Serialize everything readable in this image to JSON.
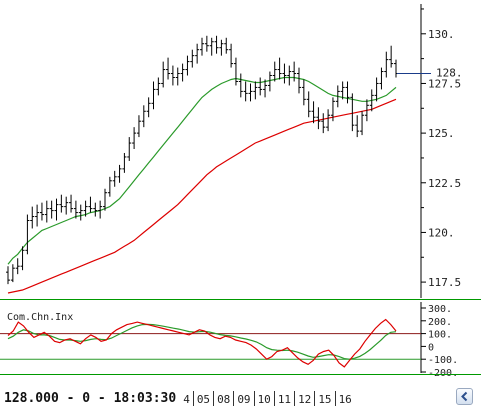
{
  "status": {
    "readout": "128.000 - 0 - 18:03:30",
    "date_ticks": [
      "4",
      "05",
      "08",
      "09",
      "10",
      "11",
      "12",
      "15",
      "16"
    ]
  },
  "colors": {
    "price": "#000000",
    "ma_fast": "#2a9a2a",
    "ma_slow": "#dd0000",
    "last_price_line": "#1a3c8a",
    "separator": "#009900",
    "overbought_level": "#8b1a1a",
    "oversold_level": "#2a9a2a",
    "indicator": "#dd0000",
    "signal": "#2a9a2a"
  },
  "chart_data": [
    {
      "type": "bar",
      "title": "",
      "xlabel": "",
      "ylabel": "",
      "ylim": [
        116.8,
        131.5
      ],
      "yticks": [
        117.5,
        120,
        122.5,
        125,
        127.5,
        130
      ],
      "y_tick_labels": [
        "117.5",
        "120.",
        "122.5",
        "125.",
        "127.5",
        "130."
      ],
      "last_price": 128,
      "last_price_label": "128.",
      "grid": false,
      "series": [
        {
          "kind": "ohlc",
          "values": [
            [
              118,
              118.3,
              117.4,
              117.6
            ],
            [
              117.6,
              118.4,
              117.5,
              118.2
            ],
            [
              118.2,
              118.7,
              117.9,
              118.3
            ],
            [
              118.3,
              119.3,
              118.1,
              119.1
            ],
            [
              119.1,
              120.9,
              118.9,
              120.6
            ],
            [
              120.6,
              121.3,
              120.2,
              120.8
            ],
            [
              120.8,
              121.4,
              120.3,
              121
            ],
            [
              121,
              121.5,
              120.6,
              120.9
            ],
            [
              120.9,
              121.6,
              120.5,
              121.2
            ],
            [
              121.2,
              121.6,
              120.7,
              121.1
            ],
            [
              121.1,
              121.7,
              120.6,
              121.4
            ],
            [
              121.4,
              121.9,
              121,
              121.3
            ],
            [
              121.3,
              121.8,
              120.9,
              121.5
            ],
            [
              121.5,
              121.9,
              121,
              121.2
            ],
            [
              121.2,
              121.6,
              120.7,
              121
            ],
            [
              121,
              121.4,
              120.6,
              121.1
            ],
            [
              121.1,
              121.6,
              120.8,
              121.3
            ],
            [
              121.3,
              121.8,
              121,
              121.2
            ],
            [
              121.2,
              121.5,
              120.8,
              121.1
            ],
            [
              121.1,
              121.6,
              120.7,
              121.3
            ],
            [
              121.3,
              122.2,
              121.1,
              122
            ],
            [
              122,
              122.8,
              121.8,
              122.6
            ],
            [
              122.6,
              123.1,
              122.3,
              122.8
            ],
            [
              122.8,
              123.4,
              122.5,
              123.2
            ],
            [
              123.2,
              124,
              123,
              123.8
            ],
            [
              123.8,
              124.8,
              123.6,
              124.5
            ],
            [
              124.5,
              125.3,
              124.2,
              125
            ],
            [
              125,
              125.9,
              124.8,
              125.6
            ],
            [
              125.6,
              126.4,
              125.3,
              126.1
            ],
            [
              126.1,
              126.8,
              125.8,
              126.5
            ],
            [
              126.5,
              127.6,
              126.2,
              127.2
            ],
            [
              127.2,
              127.8,
              126.9,
              127.5
            ],
            [
              127.5,
              128.6,
              127.3,
              128.2
            ],
            [
              128.2,
              128.8,
              127.7,
              128
            ],
            [
              128,
              128.4,
              127.4,
              127.8
            ],
            [
              127.8,
              128.3,
              127.4,
              128
            ],
            [
              128,
              128.5,
              127.6,
              128.2
            ],
            [
              128.2,
              128.9,
              127.9,
              128.6
            ],
            [
              128.6,
              129.2,
              128.3,
              128.9
            ],
            [
              128.9,
              129.5,
              128.5,
              129.2
            ],
            [
              129.2,
              129.8,
              128.9,
              129.5
            ],
            [
              129.5,
              129.9,
              129.1,
              129.4
            ],
            [
              129.4,
              129.8,
              128.9,
              129.6
            ],
            [
              129.6,
              129.9,
              129,
              129.3
            ],
            [
              129.3,
              129.7,
              128.9,
              129.5
            ],
            [
              129.5,
              129.8,
              129,
              129.2
            ],
            [
              129.2,
              129.5,
              128.3,
              128.5
            ],
            [
              128.5,
              128.8,
              127.4,
              127.6
            ],
            [
              127.6,
              128,
              126.8,
              127.1
            ],
            [
              127.1,
              127.6,
              126.6,
              127
            ],
            [
              127,
              127.5,
              126.6,
              127.1
            ],
            [
              127.1,
              127.6,
              126.7,
              127.3
            ],
            [
              127.3,
              127.8,
              126.9,
              127.2
            ],
            [
              127.2,
              127.7,
              126.8,
              127.4
            ],
            [
              127.4,
              128.1,
              127.1,
              127.9
            ],
            [
              127.9,
              128.6,
              127.6,
              128.2
            ],
            [
              128.2,
              128.8,
              127.7,
              128
            ],
            [
              128,
              128.5,
              127.5,
              127.9
            ],
            [
              127.9,
              128.4,
              127.4,
              128.1
            ],
            [
              128.1,
              128.6,
              127.6,
              128
            ],
            [
              128,
              128.3,
              127,
              127.3
            ],
            [
              127.3,
              127.7,
              126.4,
              126.7
            ],
            [
              126.7,
              127.1,
              125.8,
              126.1
            ],
            [
              126.1,
              126.6,
              125.5,
              125.8
            ],
            [
              125.8,
              126.3,
              125.2,
              125.6
            ],
            [
              125.6,
              126,
              125,
              125.3
            ],
            [
              125.3,
              126.2,
              125.1,
              125.9
            ],
            [
              125.9,
              126.8,
              125.6,
              126.6
            ],
            [
              126.6,
              127.4,
              126.3,
              127.1
            ],
            [
              127.1,
              127.6,
              126.7,
              127.3
            ],
            [
              127.3,
              127.6,
              126.5,
              126.8
            ],
            [
              126.8,
              127,
              125.1,
              125.4
            ],
            [
              125.4,
              125.9,
              124.8,
              125.1
            ],
            [
              125.1,
              126.1,
              124.9,
              125.9
            ],
            [
              125.9,
              126.7,
              125.6,
              126.4
            ],
            [
              126.4,
              127.2,
              126.1,
              126.9
            ],
            [
              126.9,
              127.8,
              126.6,
              127.5
            ],
            [
              127.5,
              128.3,
              127.2,
              128.1
            ],
            [
              128.1,
              129.1,
              127.8,
              128.7
            ],
            [
              128.7,
              129.4,
              128.3,
              128.5
            ],
            [
              128.5,
              128.7,
              127.8,
              128
            ]
          ]
        },
        {
          "name": "",
          "kind": "line",
          "color": "#2a9a2a",
          "values": [
            118.4,
            118.7,
            118.9,
            119.2,
            119.5,
            119.7,
            119.9,
            120.1,
            120.2,
            120.3,
            120.4,
            120.5,
            120.6,
            120.7,
            120.8,
            120.85,
            120.9,
            121.0,
            121.05,
            121.1,
            121.2,
            121.3,
            121.5,
            121.7,
            122.0,
            122.3,
            122.6,
            122.9,
            123.2,
            123.5,
            123.8,
            124.1,
            124.4,
            124.7,
            125.0,
            125.3,
            125.6,
            125.9,
            126.2,
            126.5,
            126.8,
            127.0,
            127.2,
            127.35,
            127.5,
            127.6,
            127.7,
            127.75,
            127.7,
            127.65,
            127.6,
            127.55,
            127.55,
            127.6,
            127.65,
            127.7,
            127.75,
            127.8,
            127.8,
            127.8,
            127.75,
            127.7,
            127.6,
            127.45,
            127.3,
            127.15,
            127.0,
            126.9,
            126.85,
            126.8,
            126.75,
            126.7,
            126.65,
            126.6,
            126.6,
            126.65,
            126.7,
            126.8,
            126.9,
            127.1,
            127.3
          ]
        },
        {
          "name": "",
          "kind": "line",
          "color": "#dd0000",
          "values": [
            116.95,
            117.0,
            117.05,
            117.1,
            117.2,
            117.3,
            117.4,
            117.5,
            117.6,
            117.7,
            117.8,
            117.9,
            118.0,
            118.1,
            118.2,
            118.3,
            118.4,
            118.5,
            118.6,
            118.7,
            118.8,
            118.9,
            119.0,
            119.15,
            119.3,
            119.45,
            119.6,
            119.8,
            120.0,
            120.2,
            120.4,
            120.6,
            120.8,
            121.0,
            121.2,
            121.4,
            121.65,
            121.9,
            122.15,
            122.4,
            122.65,
            122.9,
            123.1,
            123.3,
            123.45,
            123.6,
            123.75,
            123.9,
            124.05,
            124.2,
            124.35,
            124.5,
            124.6,
            124.7,
            124.8,
            124.9,
            125.0,
            125.1,
            125.2,
            125.3,
            125.4,
            125.5,
            125.55,
            125.6,
            125.65,
            125.7,
            125.75,
            125.8,
            125.85,
            125.9,
            125.95,
            126.0,
            126.05,
            126.1,
            126.15,
            126.2,
            126.3,
            126.4,
            126.5,
            126.6,
            126.7
          ]
        }
      ]
    },
    {
      "type": "line",
      "title": "Com.Chn.Inx",
      "ylim": [
        -200,
        300
      ],
      "yticks": [
        -200,
        -100,
        0,
        100,
        200,
        300
      ],
      "y_tick_labels": [
        "-200.",
        "-100.",
        "0",
        "100.",
        "200.",
        "300."
      ],
      "reference_lines": [
        100,
        -100
      ],
      "series": [
        {
          "name": "",
          "color": "#dd0000",
          "values": [
            85,
            120,
            190,
            160,
            110,
            70,
            90,
            110,
            80,
            40,
            30,
            50,
            60,
            40,
            20,
            60,
            90,
            70,
            40,
            50,
            100,
            130,
            150,
            170,
            180,
            190,
            180,
            170,
            160,
            150,
            140,
            130,
            120,
            110,
            100,
            90,
            110,
            130,
            120,
            90,
            70,
            60,
            80,
            70,
            50,
            40,
            30,
            10,
            -20,
            -60,
            -100,
            -80,
            -40,
            -30,
            -10,
            -50,
            -90,
            -120,
            -140,
            -110,
            -60,
            -40,
            -30,
            -70,
            -130,
            -160,
            -110,
            -60,
            -20,
            40,
            90,
            140,
            180,
            210,
            170,
            120
          ]
        },
        {
          "name": "",
          "color": "#2a9a2a",
          "values": [
            60,
            80,
            110,
            130,
            120,
            100,
            90,
            90,
            85,
            70,
            55,
            50,
            50,
            45,
            40,
            45,
            55,
            60,
            55,
            52,
            65,
            85,
            105,
            125,
            145,
            160,
            170,
            172,
            170,
            165,
            158,
            150,
            142,
            135,
            126,
            116,
            112,
            115,
            117,
            112,
            102,
            92,
            86,
            82,
            75,
            66,
            58,
            48,
            35,
            15,
            -10,
            -25,
            -30,
            -32,
            -30,
            -35,
            -45,
            -60,
            -75,
            -85,
            -80,
            -72,
            -65,
            -67,
            -80,
            -95,
            -100,
            -92,
            -78,
            -55,
            -25,
            10,
            45,
            85,
            110,
            115
          ]
        }
      ]
    }
  ]
}
